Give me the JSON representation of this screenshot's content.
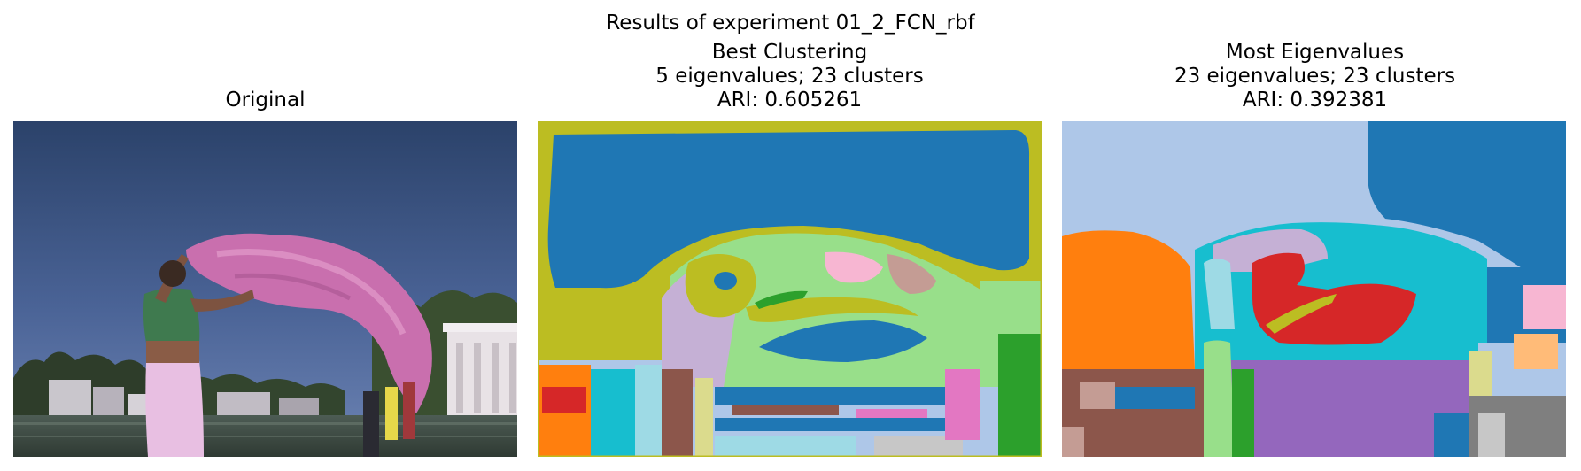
{
  "figure": {
    "suptitle": "Results of experiment 01_2_FCN_rbf"
  },
  "panels": [
    {
      "title_lines": [
        "Original"
      ]
    },
    {
      "title_lines": [
        "Best Clustering",
        "5 eigenvalues; 23 clusters",
        "ARI: 0.605261"
      ]
    },
    {
      "title_lines": [
        "Most Eigenvalues",
        "23 eigenvalues; 23 clusters",
        "ARI: 0.392381"
      ]
    }
  ],
  "palette": {
    "tab_blue": "#1f77b4",
    "tab_light_blue": "#aec7e8",
    "tab_orange": "#ff7f0e",
    "tab_light_orange": "#ffbb78",
    "tab_green": "#2ca02c",
    "tab_light_green": "#98df8a",
    "tab_red": "#d62728",
    "tab_light_red": "#ff9896",
    "tab_purple": "#9467bd",
    "tab_light_purple": "#c5b0d5",
    "tab_brown": "#8c564b",
    "tab_light_brown": "#c49c94",
    "tab_pink": "#e377c2",
    "tab_light_pink": "#f7b6d2",
    "tab_gray": "#7f7f7f",
    "tab_light_gray": "#c7c7c7",
    "tab_olive": "#bcbd22",
    "tab_light_olive": "#dbdb8d",
    "tab_cyan": "#17becf",
    "tab_light_cyan": "#9edae5"
  }
}
